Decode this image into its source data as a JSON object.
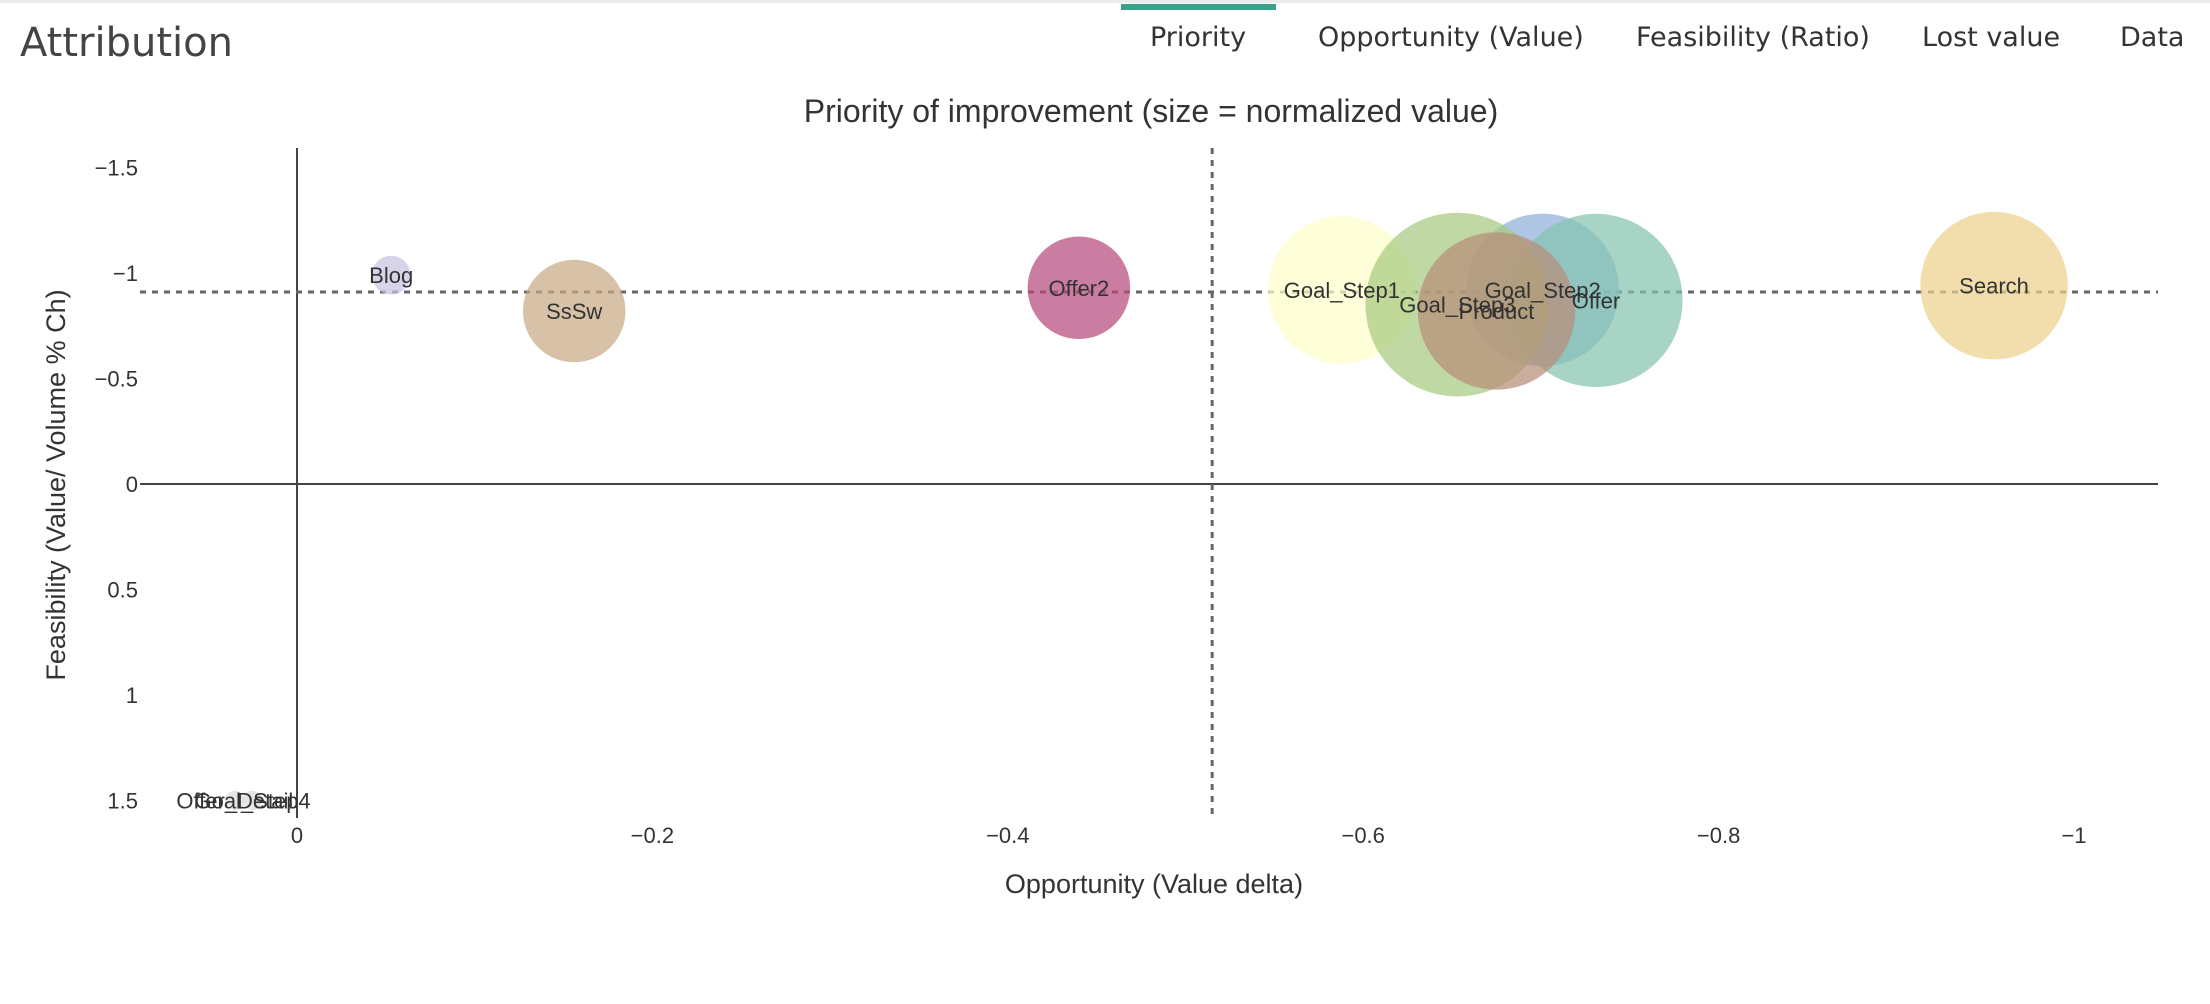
{
  "app": {
    "title": "Attribution"
  },
  "tabs": [
    {
      "label": "Priority",
      "active": true
    },
    {
      "label": "Opportunity (Value)",
      "active": false
    },
    {
      "label": "Feasibility (Ratio)",
      "active": false
    },
    {
      "label": "Lost value",
      "active": false
    },
    {
      "label": "Data",
      "active": false
    }
  ],
  "colors": {
    "accent": "#3aa18a"
  },
  "chart_data": {
    "type": "scatter",
    "title": "Priority of improvement (size = normalized value)",
    "xlabel": "Opportunity (Value delta)",
    "ylabel": "Feasibility (Value/ Volume % Ch)",
    "xlim": [
      0.07,
      -1.05
    ],
    "ylim": [
      1.58,
      -1.5
    ],
    "x_reversed": true,
    "y_reversed": true,
    "x_ticks": [
      {
        "value": 0,
        "label": "0"
      },
      {
        "value": -0.2,
        "label": "−0.2"
      },
      {
        "value": -0.4,
        "label": "−0.4"
      },
      {
        "value": -0.6,
        "label": "−0.6"
      },
      {
        "value": -0.8,
        "label": "−0.8"
      },
      {
        "value": -1,
        "label": "−1"
      }
    ],
    "y_ticks": [
      {
        "value": -1.5,
        "label": "−1.5"
      },
      {
        "value": -1,
        "label": "−1"
      },
      {
        "value": -0.5,
        "label": "−0.5"
      },
      {
        "value": 0,
        "label": "0"
      },
      {
        "value": 0.5,
        "label": "0.5"
      },
      {
        "value": 1,
        "label": "1"
      },
      {
        "value": 1.5,
        "label": "1.5"
      }
    ],
    "reference_lines": {
      "x": -0.515,
      "y": -0.91
    },
    "grid": false,
    "points": [
      {
        "label": "Blog",
        "x": -0.053,
        "y": -0.99,
        "size": 0.02,
        "color": "#c7c4e2"
      },
      {
        "label": "SsSw",
        "x": -0.156,
        "y": -0.82,
        "size": 0.14,
        "color": "#c8ab85"
      },
      {
        "label": "Offer2",
        "x": -0.44,
        "y": -0.93,
        "size": 0.14,
        "color": "#b64b7b"
      },
      {
        "label": "Goal_Step1",
        "x": -0.588,
        "y": -0.92,
        "size": 0.29,
        "color": "#fdfdc9"
      },
      {
        "label": "Goal_Step2",
        "x": -0.701,
        "y": -0.92,
        "size": 0.31,
        "color": "#8fb0d9"
      },
      {
        "label": "Offer",
        "x": -0.731,
        "y": -0.87,
        "size": 0.4,
        "color": "#85c4ae"
      },
      {
        "label": "Goal_Step3",
        "x": -0.653,
        "y": -0.85,
        "size": 0.45,
        "color": "#a8c97f"
      },
      {
        "label": "Product",
        "x": -0.675,
        "y": -0.82,
        "size": 0.33,
        "color": "#b78e79"
      },
      {
        "label": "Search",
        "x": -0.955,
        "y": -0.94,
        "size": 0.29,
        "color": "#edd08e"
      },
      {
        "label": "Goal_Step4",
        "x": 0.025,
        "y": 1.5,
        "size": 0.005,
        "color": "#dddddd"
      },
      {
        "label": "Offer_Detail",
        "x": 0.035,
        "y": 1.5,
        "size": 0.005,
        "color": "#dddddd"
      }
    ]
  }
}
